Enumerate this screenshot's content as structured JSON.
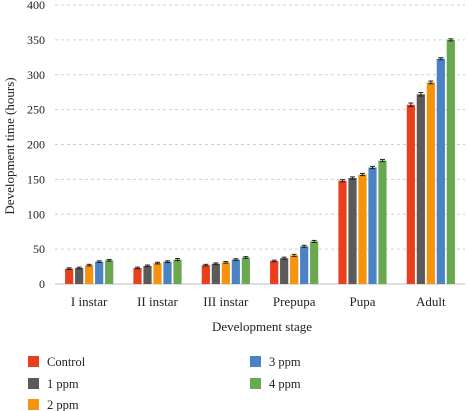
{
  "chart_data": {
    "type": "bar",
    "title": "",
    "xlabel": "Development stage",
    "ylabel": "Development time (hours)",
    "ylim": [
      0,
      400
    ],
    "yticks": [
      0,
      50,
      100,
      150,
      200,
      250,
      300,
      350,
      400
    ],
    "grid": "horizontal dashed",
    "legend_position": "bottom",
    "categories": [
      "I instar",
      "II instar",
      "III instar",
      "Prepupa",
      "Pupa",
      "Adult"
    ],
    "series": [
      {
        "name": "Control",
        "color": "#e8401c",
        "values": [
          22,
          23,
          27,
          33,
          148,
          257
        ],
        "errors": [
          1.2,
          1.2,
          1.2,
          1.2,
          1.6,
          2.5
        ]
      },
      {
        "name": "1 ppm",
        "color": "#5a5a5a",
        "values": [
          23,
          26,
          29,
          37,
          152,
          272
        ],
        "errors": [
          1.2,
          1.2,
          1.2,
          1.5,
          1.6,
          2.5
        ]
      },
      {
        "name": "2 ppm",
        "color": "#f5920e",
        "values": [
          27,
          30,
          31,
          41,
          157,
          289
        ],
        "errors": [
          1.2,
          1.2,
          1.2,
          1.5,
          1.6,
          2.0
        ]
      },
      {
        "name": "3 ppm",
        "color": "#4a82c4",
        "values": [
          32,
          32,
          35,
          54,
          167,
          323
        ],
        "errors": [
          1.2,
          1.2,
          1.2,
          1.5,
          1.6,
          1.5
        ]
      },
      {
        "name": "4 ppm",
        "color": "#6aa84f",
        "values": [
          34,
          35,
          38,
          61,
          177,
          350
        ],
        "errors": [
          1.2,
          1.5,
          1.2,
          1.5,
          1.6,
          1.5
        ]
      }
    ]
  }
}
